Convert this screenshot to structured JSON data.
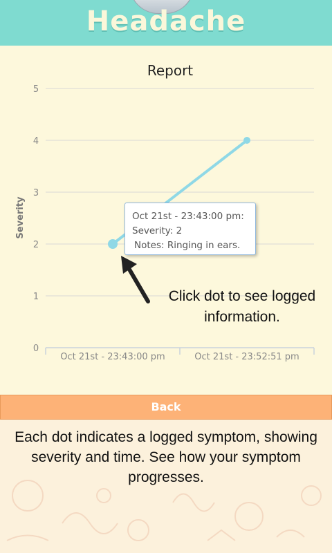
{
  "header": {
    "title": "Headache"
  },
  "report_title": "Report",
  "chart_data": {
    "type": "line",
    "title": "Report",
    "ylabel": "Severity",
    "xlabel": "",
    "ylim": [
      0,
      5
    ],
    "yticks": [
      "0",
      "1",
      "2",
      "3",
      "4",
      "5"
    ],
    "categories": [
      "Oct 21st - 23:43:00 pm",
      "Oct 21st - 23:52:51 pm"
    ],
    "series": [
      {
        "name": "Severity",
        "values": [
          2,
          4
        ]
      }
    ],
    "line_color": "#8fd8e6",
    "grid": true
  },
  "tooltip": {
    "time": "Oct 21st - 23:43:00 pm:",
    "severity": "Severity: 2",
    "notes": "Notes: Ringing in ears."
  },
  "annotation": {
    "text": "Click dot to see logged information."
  },
  "back_button": {
    "label": "Back"
  },
  "caption": {
    "text": "Each dot indicates a logged symptom, showing severity and time. See how your symptom progresses."
  },
  "colors": {
    "header": "#7fdbd0",
    "button": "#fdb277",
    "background": "#fdf8dc"
  }
}
